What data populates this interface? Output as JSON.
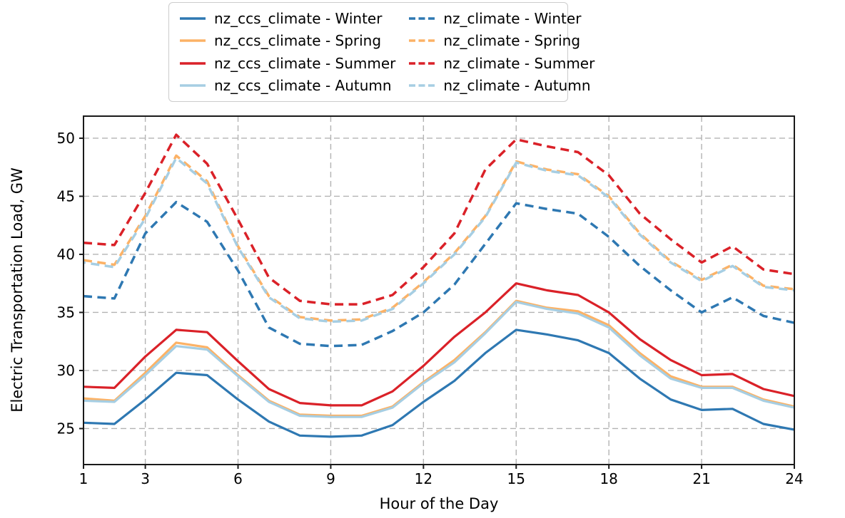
{
  "chart_data": {
    "type": "line",
    "title": "",
    "xlabel": "Hour of the Day",
    "ylabel": "Electric Transportation Load, GW",
    "x": [
      1,
      2,
      3,
      4,
      5,
      6,
      7,
      8,
      9,
      10,
      11,
      12,
      13,
      14,
      15,
      16,
      17,
      18,
      19,
      20,
      21,
      22,
      23,
      24
    ],
    "xlim": [
      1,
      24
    ],
    "ylim": [
      21.9,
      51.9
    ],
    "x_ticks": [
      1,
      3,
      6,
      9,
      12,
      15,
      18,
      21,
      24
    ],
    "y_ticks": [
      25,
      30,
      35,
      40,
      45,
      50
    ],
    "grid": true,
    "grid_style": "dashed-gray",
    "legend_position": "top-center-2-columns",
    "colors": {
      "winter_blue": "#2e78b2",
      "spring_orange": "#fcb266",
      "summer_red": "#da2128",
      "autumn_lightblue": "#a6cee3",
      "grid_gray": "#b3b3b3",
      "spine_black": "#1a1a1a"
    },
    "series": [
      {
        "name": "nz_ccs_climate - Winter",
        "color": "#2e78b2",
        "style": "solid",
        "values": [
          25.5,
          25.4,
          27.5,
          29.8,
          29.6,
          27.5,
          25.6,
          24.4,
          24.3,
          24.4,
          25.3,
          27.3,
          29.1,
          31.5,
          33.5,
          33.1,
          32.6,
          31.5,
          29.3,
          27.5,
          26.6,
          26.7,
          25.4,
          24.9
        ]
      },
      {
        "name": "nz_ccs_climate - Spring",
        "color": "#fcb266",
        "style": "solid",
        "values": [
          27.6,
          27.4,
          29.8,
          32.4,
          32.0,
          29.6,
          27.4,
          26.2,
          26.1,
          26.1,
          26.9,
          29.0,
          30.9,
          33.3,
          36.0,
          35.4,
          35.1,
          33.9,
          31.5,
          29.5,
          28.6,
          28.6,
          27.5,
          26.9
        ]
      },
      {
        "name": "nz_ccs_climate - Summer",
        "color": "#da2128",
        "style": "solid",
        "values": [
          28.6,
          28.5,
          31.2,
          33.5,
          33.3,
          30.8,
          28.4,
          27.2,
          27.0,
          27.0,
          28.2,
          30.4,
          32.9,
          35.0,
          37.5,
          36.9,
          36.5,
          35.0,
          32.7,
          30.9,
          29.6,
          29.7,
          28.4,
          27.8
        ]
      },
      {
        "name": "nz_ccs_climate - Autumn",
        "color": "#a6cee3",
        "style": "solid",
        "values": [
          27.4,
          27.3,
          29.6,
          32.1,
          31.8,
          29.5,
          27.3,
          26.1,
          26.0,
          26.0,
          26.8,
          28.9,
          30.7,
          33.2,
          35.9,
          35.3,
          34.9,
          33.7,
          31.3,
          29.3,
          28.5,
          28.5,
          27.4,
          26.8
        ]
      },
      {
        "name": "nz_climate - Winter",
        "color": "#2e78b2",
        "style": "dashed",
        "values": [
          36.4,
          36.2,
          41.8,
          44.5,
          42.8,
          38.6,
          33.7,
          32.3,
          32.1,
          32.2,
          33.4,
          35.0,
          37.4,
          40.9,
          44.4,
          43.9,
          43.5,
          41.5,
          39.0,
          36.9,
          35.0,
          36.3,
          34.7,
          34.1
        ]
      },
      {
        "name": "nz_climate - Spring",
        "color": "#fcb266",
        "style": "dashed",
        "values": [
          39.5,
          39.1,
          43.3,
          48.5,
          46.3,
          40.7,
          36.4,
          34.6,
          34.3,
          34.4,
          35.4,
          37.6,
          40.1,
          43.3,
          48.0,
          47.3,
          46.9,
          45.0,
          41.8,
          39.4,
          37.8,
          39.1,
          37.3,
          37.0
        ]
      },
      {
        "name": "nz_climate - Summer",
        "color": "#da2128",
        "style": "dashed",
        "values": [
          41.0,
          40.8,
          45.3,
          50.3,
          47.8,
          43.0,
          38.0,
          36.0,
          35.7,
          35.7,
          36.5,
          38.9,
          41.8,
          47.3,
          49.9,
          49.3,
          48.8,
          46.8,
          43.5,
          41.3,
          39.3,
          40.7,
          38.7,
          38.3
        ]
      },
      {
        "name": "nz_climate - Autumn",
        "color": "#a6cee3",
        "style": "dashed",
        "values": [
          39.3,
          38.9,
          43.1,
          48.3,
          46.1,
          40.6,
          36.3,
          34.5,
          34.2,
          34.3,
          35.3,
          37.5,
          40.0,
          43.2,
          47.9,
          47.2,
          46.8,
          44.9,
          41.7,
          39.3,
          37.7,
          39.0,
          37.2,
          36.9
        ]
      }
    ]
  }
}
